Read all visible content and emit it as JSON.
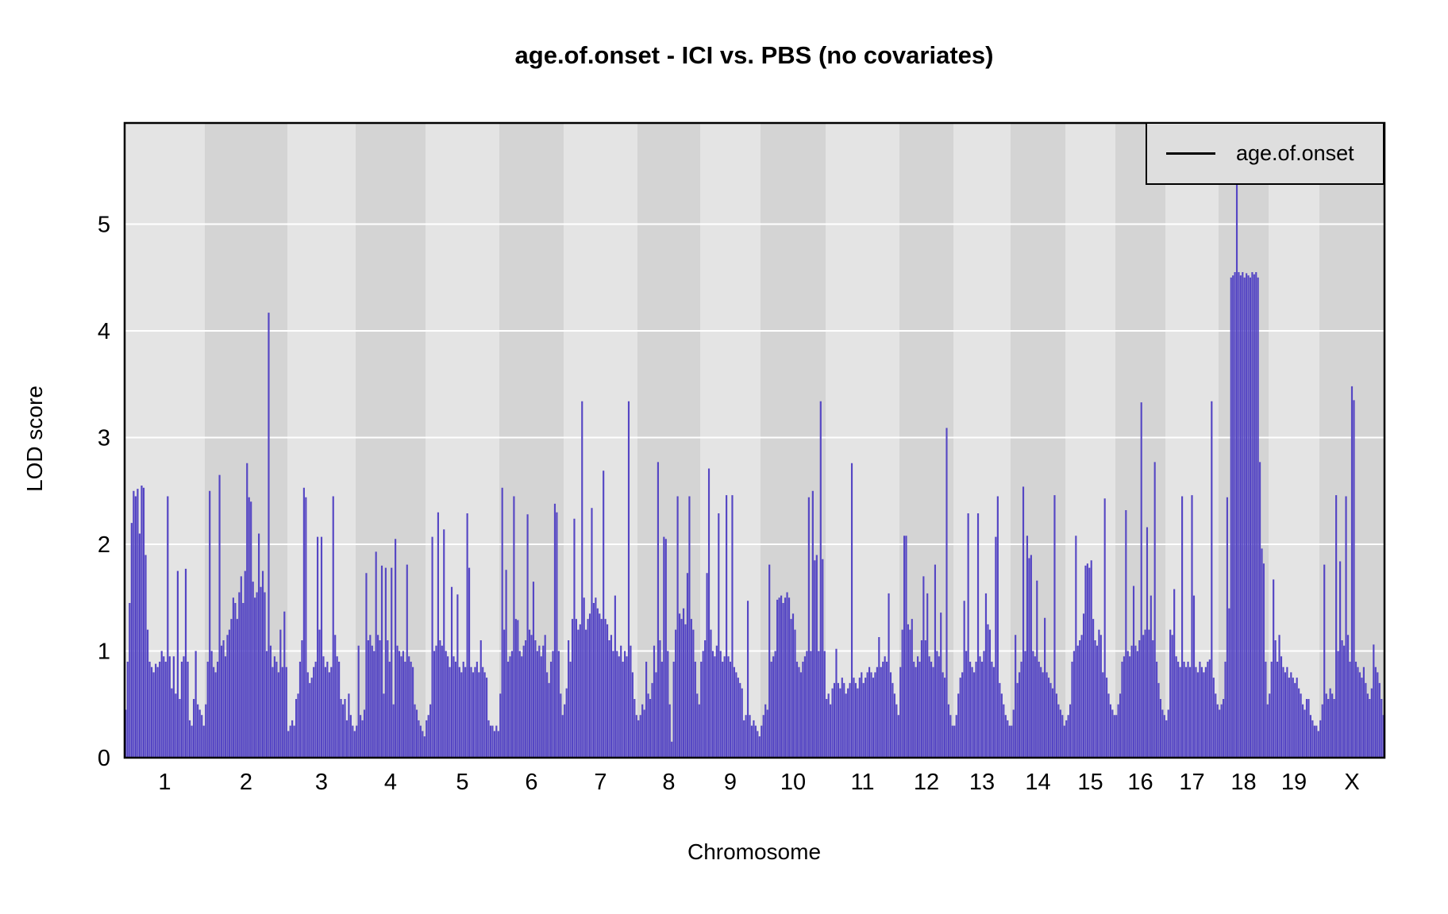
{
  "title": "age.of.onset - ICI vs. PBS (no covariates)",
  "legend": {
    "label": "age.of.onset"
  },
  "axes": {
    "x_title": "Chromosome",
    "y_title": "LOD score",
    "y_tick_labels": [
      "0",
      "1",
      "2",
      "3",
      "4",
      "5"
    ],
    "x_tick_labels": [
      "1",
      "2",
      "3",
      "4",
      "5",
      "6",
      "7",
      "8",
      "9",
      "10",
      "11",
      "12",
      "13",
      "14",
      "15",
      "16",
      "17",
      "18",
      "19",
      "X"
    ]
  },
  "colors": {
    "bar": "#5546c4",
    "band_light": "#e4e4e4",
    "band_dark": "#d4d4d4",
    "gridline": "#ffffff",
    "plot_border": "#000000",
    "legend_bg": "#dedede",
    "text": "#000000"
  },
  "chart_data": {
    "type": "bar",
    "title": "age.of.onset - ICI vs. PBS (no covariates)",
    "xlabel": "Chromosome",
    "ylabel": "LOD score",
    "ylim": [
      0,
      5.95
    ],
    "y_ticks": [
      0,
      1,
      2,
      3,
      4,
      5
    ],
    "grid": "horizontal-white-on-gray",
    "legend_position": "top-right",
    "series_name": "age.of.onset",
    "chromosomes": [
      {
        "name": "1",
        "weight": 101,
        "lod": [
          0.45,
          0.9,
          1.45,
          2.2,
          2.5,
          2.45,
          2.52,
          2.1,
          2.55,
          2.53,
          1.9,
          1.2,
          0.9,
          0.85,
          0.8,
          0.88,
          0.85,
          0.9,
          1.0,
          0.95,
          0.9,
          2.45,
          0.95,
          0.65,
          0.95,
          0.6,
          1.75,
          0.55,
          0.9,
          0.95,
          1.77,
          0.9,
          0.35,
          0.3,
          0.55,
          1.0,
          0.5,
          0.45,
          0.4,
          0.3
        ]
      },
      {
        "name": "2",
        "weight": 104,
        "lod": [
          0.5,
          0.9,
          2.5,
          1.0,
          0.85,
          0.8,
          0.9,
          2.65,
          1.05,
          1.1,
          0.95,
          1.15,
          1.2,
          1.3,
          1.5,
          1.45,
          1.3,
          1.55,
          1.7,
          1.45,
          1.75,
          2.76,
          2.44,
          2.4,
          1.65,
          1.5,
          1.55,
          2.1,
          1.6,
          1.75,
          1.55,
          1.0,
          4.17,
          1.05,
          0.85,
          0.95,
          0.9,
          0.8,
          1.2,
          0.85,
          1.37,
          0.85
        ]
      },
      {
        "name": "3",
        "weight": 86,
        "lod": [
          0.25,
          0.3,
          0.35,
          0.3,
          0.55,
          0.6,
          0.9,
          1.1,
          2.53,
          2.44,
          0.8,
          0.7,
          0.75,
          0.85,
          0.9,
          2.07,
          1.2,
          2.07,
          0.95,
          0.85,
          0.9,
          0.8,
          0.85,
          2.45,
          1.15,
          0.95,
          0.9,
          0.55,
          0.5,
          0.55,
          0.35,
          0.6,
          0.4,
          0.3,
          0.25
        ]
      },
      {
        "name": "4",
        "weight": 88,
        "lod": [
          0.3,
          1.05,
          0.4,
          0.35,
          0.45,
          1.73,
          1.1,
          1.15,
          1.05,
          1.0,
          1.93,
          1.15,
          1.1,
          1.8,
          0.6,
          1.78,
          1.1,
          0.9,
          1.78,
          0.5,
          2.05,
          1.05,
          1.0,
          0.95,
          1.0,
          0.9,
          1.81,
          0.95,
          0.9,
          0.85,
          0.5,
          0.45,
          0.35,
          0.3,
          0.25,
          0.2
        ]
      },
      {
        "name": "5",
        "weight": 93,
        "lod": [
          0.35,
          0.4,
          0.5,
          2.07,
          1.0,
          1.05,
          2.3,
          1.1,
          1.05,
          2.14,
          1.0,
          0.95,
          0.85,
          1.6,
          0.95,
          0.9,
          1.53,
          0.85,
          0.8,
          0.9,
          0.85,
          2.29,
          1.78,
          0.85,
          0.8,
          0.85,
          0.9,
          0.8,
          1.1,
          0.85,
          0.8,
          0.75,
          0.35,
          0.3,
          0.3,
          0.25,
          0.3,
          0.25
        ]
      },
      {
        "name": "6",
        "weight": 81,
        "lod": [
          0.6,
          2.53,
          1.2,
          1.76,
          0.9,
          0.95,
          1.0,
          2.45,
          1.3,
          1.29,
          1.0,
          0.95,
          1.05,
          1.1,
          2.28,
          1.2,
          1.15,
          1.65,
          1.1,
          1.0,
          1.05,
          0.95,
          1.05,
          1.15,
          0.8,
          0.7,
          0.9,
          1.0,
          2.38,
          2.3,
          1.0,
          0.6,
          0.4
        ]
      },
      {
        "name": "7",
        "weight": 93,
        "lod": [
          0.5,
          0.65,
          1.1,
          0.9,
          1.3,
          2.24,
          1.3,
          1.2,
          1.25,
          3.34,
          1.5,
          1.2,
          1.3,
          1.35,
          2.34,
          1.45,
          1.5,
          1.4,
          1.35,
          1.3,
          2.69,
          1.3,
          1.25,
          1.1,
          1.15,
          1.0,
          1.52,
          1.0,
          0.95,
          1.05,
          0.9,
          1.0,
          0.95,
          3.34,
          1.05,
          0.8,
          0.55,
          0.4
        ]
      },
      {
        "name": "8",
        "weight": 79,
        "lod": [
          0.35,
          0.4,
          0.5,
          0.45,
          0.9,
          0.6,
          0.55,
          0.7,
          1.05,
          0.8,
          2.77,
          1.1,
          0.9,
          2.07,
          2.05,
          1.0,
          0.5,
          0.15,
          0.9,
          1.2,
          2.45,
          1.35,
          1.3,
          1.4,
          1.25,
          1.73,
          2.45,
          1.3,
          1.2,
          0.9,
          0.6,
          0.5
        ]
      },
      {
        "name": "9",
        "weight": 76,
        "lod": [
          0.9,
          1.0,
          1.1,
          1.73,
          2.71,
          1.2,
          1.0,
          0.95,
          1.05,
          2.29,
          1.0,
          0.9,
          0.95,
          2.46,
          0.95,
          0.9,
          2.46,
          0.85,
          0.8,
          0.75,
          0.7,
          0.65,
          0.35,
          0.4,
          1.47,
          0.4,
          0.3,
          0.35,
          0.3,
          0.25,
          0.2
        ]
      },
      {
        "name": "10",
        "weight": 82,
        "lod": [
          0.3,
          0.4,
          0.5,
          0.45,
          1.81,
          0.9,
          0.95,
          1.0,
          1.48,
          1.5,
          1.52,
          1.45,
          1.5,
          1.55,
          1.5,
          1.3,
          1.35,
          1.2,
          0.9,
          0.85,
          0.8,
          0.9,
          0.95,
          1.0,
          2.44,
          1.0,
          2.5,
          1.85,
          1.9,
          1.0,
          3.34,
          1.86,
          1.0
        ]
      },
      {
        "name": "11",
        "weight": 93,
        "lod": [
          0.55,
          0.6,
          0.5,
          0.65,
          0.7,
          1.02,
          0.7,
          0.65,
          0.75,
          0.7,
          0.6,
          0.65,
          0.7,
          2.76,
          0.75,
          0.7,
          0.65,
          0.75,
          0.8,
          0.7,
          0.75,
          0.8,
          0.85,
          0.8,
          0.75,
          0.8,
          0.85,
          1.13,
          0.85,
          0.9,
          0.95,
          0.9,
          1.54,
          0.8,
          0.7,
          0.6,
          0.5,
          0.4
        ]
      },
      {
        "name": "12",
        "weight": 68,
        "lod": [
          0.85,
          1.2,
          2.08,
          2.08,
          1.25,
          1.2,
          1.3,
          0.9,
          0.85,
          0.95,
          0.9,
          1.1,
          1.7,
          1.1,
          1.54,
          0.95,
          0.9,
          0.85,
          1.81,
          1.0,
          0.95,
          1.36,
          0.8,
          0.75,
          3.09,
          0.5,
          0.4,
          0.3
        ]
      },
      {
        "name": "13",
        "weight": 72,
        "lod": [
          0.3,
          0.4,
          0.6,
          0.75,
          0.8,
          1.47,
          1.0,
          2.29,
          0.9,
          0.85,
          0.8,
          0.9,
          2.29,
          0.95,
          0.9,
          1.0,
          1.54,
          1.25,
          1.2,
          0.9,
          0.85,
          2.07,
          2.45,
          0.7,
          0.6,
          0.5,
          0.4,
          0.35,
          0.3
        ]
      },
      {
        "name": "14",
        "weight": 69,
        "lod": [
          0.3,
          0.45,
          1.15,
          0.7,
          0.8,
          0.9,
          2.54,
          1.0,
          2.08,
          1.87,
          1.9,
          1.0,
          0.95,
          1.66,
          0.9,
          0.85,
          0.8,
          1.31,
          0.8,
          0.75,
          0.7,
          0.65,
          2.46,
          0.6,
          0.5,
          0.45,
          0.4,
          0.3
        ]
      },
      {
        "name": "15",
        "weight": 63,
        "lod": [
          0.35,
          0.4,
          0.5,
          0.9,
          1.0,
          2.08,
          1.05,
          1.1,
          1.15,
          1.35,
          1.8,
          1.82,
          1.78,
          1.85,
          1.3,
          1.1,
          1.05,
          1.2,
          1.15,
          0.8,
          2.43,
          0.75,
          0.6,
          0.5,
          0.45,
          0.4
        ]
      },
      {
        "name": "16",
        "weight": 63,
        "lod": [
          0.4,
          0.5,
          0.6,
          0.9,
          0.95,
          2.32,
          1.0,
          0.95,
          1.05,
          1.61,
          1.05,
          1.0,
          1.1,
          3.33,
          1.15,
          1.2,
          2.16,
          1.2,
          1.52,
          1.1,
          2.77,
          0.9,
          0.7,
          0.55,
          0.45,
          0.4
        ]
      },
      {
        "name": "17",
        "weight": 67,
        "lod": [
          0.35,
          0.45,
          1.2,
          1.15,
          1.58,
          0.95,
          0.9,
          0.85,
          2.45,
          0.9,
          0.85,
          0.9,
          0.85,
          2.46,
          1.52,
          0.85,
          0.8,
          0.9,
          0.85,
          0.8,
          0.85,
          0.9,
          0.92,
          3.34,
          0.75,
          0.6,
          0.5
        ]
      },
      {
        "name": "18",
        "weight": 63,
        "lod": [
          0.45,
          0.5,
          0.55,
          0.9,
          2.44,
          1.4,
          4.5,
          4.52,
          4.55,
          5.38,
          4.55,
          4.52,
          4.55,
          4.5,
          4.54,
          4.52,
          4.5,
          4.55,
          4.53,
          4.55,
          4.5,
          2.77,
          1.96,
          1.82,
          0.9,
          0.5
        ]
      },
      {
        "name": "19",
        "weight": 64,
        "lod": [
          0.6,
          0.9,
          1.67,
          1.1,
          0.9,
          1.15,
          0.95,
          0.85,
          0.8,
          0.85,
          0.75,
          0.8,
          0.75,
          0.7,
          0.75,
          0.65,
          0.6,
          0.5,
          0.45,
          0.55,
          0.55,
          0.4,
          0.35,
          0.3,
          0.3,
          0.25
        ]
      },
      {
        "name": "X",
        "weight": 82,
        "lod": [
          0.35,
          0.5,
          1.81,
          0.6,
          0.55,
          0.65,
          0.6,
          0.55,
          2.46,
          1.0,
          1.84,
          1.1,
          1.05,
          2.45,
          1.15,
          0.9,
          3.48,
          3.35,
          0.9,
          0.85,
          0.8,
          0.75,
          0.85,
          0.7,
          0.6,
          0.55,
          0.65,
          1.06,
          0.85,
          0.8,
          0.7,
          0.55,
          0.4
        ]
      }
    ]
  }
}
